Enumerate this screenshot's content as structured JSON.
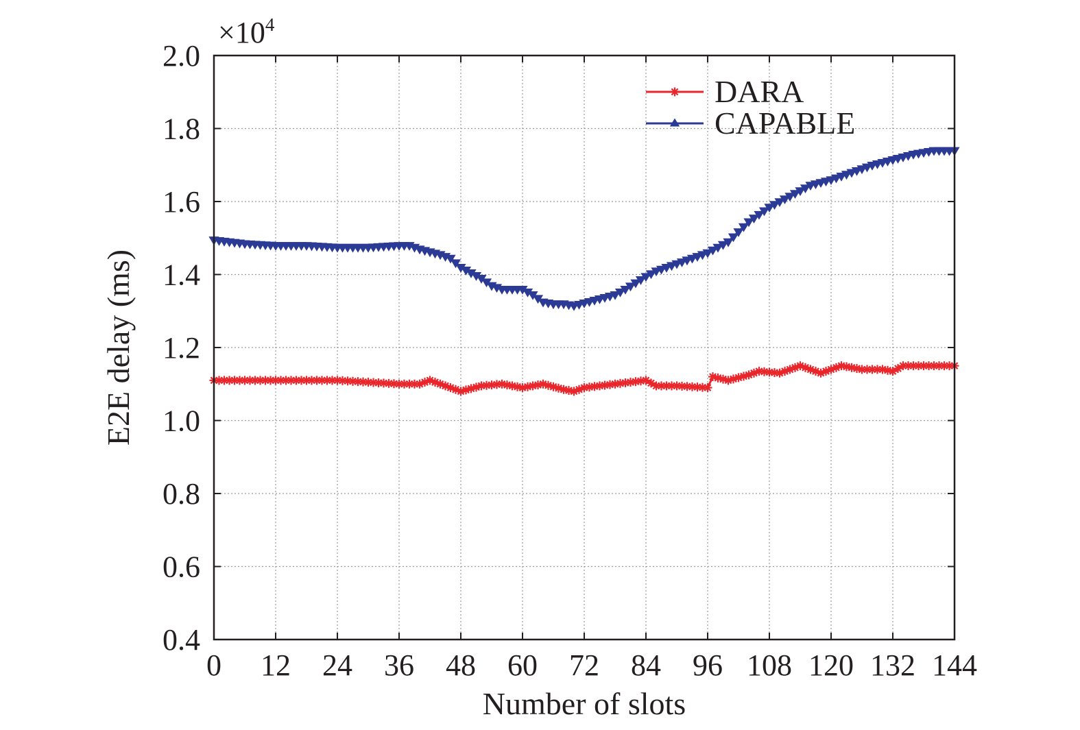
{
  "chart_data": {
    "type": "line",
    "title": "",
    "xlabel": "Number of slots",
    "ylabel": "E2E delay (ms)",
    "y_multiplier_label": "×10",
    "y_multiplier_exponent": "4",
    "xlim": [
      0,
      144
    ],
    "ylim": [
      0.4,
      2.0
    ],
    "x_ticks": [
      "0",
      "12",
      "24",
      "36",
      "48",
      "60",
      "72",
      "84",
      "96",
      "108",
      "120",
      "132",
      "144"
    ],
    "y_ticks": [
      "0.4",
      "0.6",
      "0.8",
      "1.0",
      "1.2",
      "1.4",
      "1.6",
      "1.8",
      "2.0"
    ],
    "grid": true,
    "legend_position": "top-right",
    "series": [
      {
        "name": "DARA",
        "color": "#e8262b",
        "marker": "star",
        "x": [
          0,
          6,
          12,
          18,
          24,
          30,
          36,
          40,
          42,
          45,
          48,
          52,
          56,
          60,
          64,
          68,
          70,
          72,
          78,
          84,
          86,
          90,
          96,
          97,
          100,
          104,
          106,
          110,
          114,
          118,
          120,
          122,
          126,
          130,
          132,
          134,
          138,
          144
        ],
        "y": [
          1.11,
          1.11,
          1.11,
          1.11,
          1.11,
          1.105,
          1.1,
          1.1,
          1.11,
          1.095,
          1.08,
          1.095,
          1.1,
          1.09,
          1.1,
          1.085,
          1.08,
          1.09,
          1.1,
          1.11,
          1.095,
          1.095,
          1.09,
          1.12,
          1.11,
          1.125,
          1.135,
          1.13,
          1.15,
          1.13,
          1.14,
          1.15,
          1.14,
          1.14,
          1.135,
          1.15,
          1.15,
          1.15
        ]
      },
      {
        "name": "CAPABLE",
        "color": "#2b3a95",
        "marker": "triangle",
        "x": [
          0,
          6,
          12,
          18,
          24,
          30,
          36,
          38,
          40,
          44,
          46,
          48,
          52,
          54,
          56,
          60,
          62,
          64,
          66,
          68,
          70,
          74,
          78,
          80,
          84,
          86,
          90,
          96,
          100,
          104,
          108,
          112,
          116,
          120,
          124,
          128,
          132,
          136,
          140,
          144
        ],
        "y": [
          1.495,
          1.485,
          1.48,
          1.48,
          1.475,
          1.475,
          1.48,
          1.48,
          1.47,
          1.455,
          1.445,
          1.42,
          1.39,
          1.37,
          1.36,
          1.36,
          1.345,
          1.325,
          1.32,
          1.32,
          1.315,
          1.33,
          1.345,
          1.36,
          1.395,
          1.41,
          1.43,
          1.46,
          1.49,
          1.545,
          1.585,
          1.615,
          1.645,
          1.66,
          1.68,
          1.7,
          1.715,
          1.73,
          1.74,
          1.74
        ]
      }
    ]
  }
}
